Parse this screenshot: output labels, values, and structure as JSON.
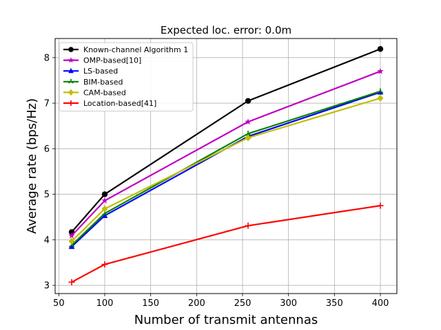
{
  "chart_data": {
    "type": "line",
    "title": "Expected loc. error: 0.0m",
    "xlabel": "Number of transmit antennas",
    "ylabel": "Average rate (bps/Hz)",
    "xlim": [
      46,
      418
    ],
    "ylim": [
      2.82,
      8.42
    ],
    "xticks": [
      50,
      100,
      150,
      200,
      250,
      300,
      350,
      400
    ],
    "yticks": [
      3,
      4,
      5,
      6,
      7,
      8
    ],
    "grid": true,
    "legend_position": "top-left",
    "series": [
      {
        "name": "Known-channel Algorithm 1",
        "color": "#000000",
        "marker": "circle",
        "x": [
          64,
          100,
          256,
          400
        ],
        "y": [
          4.17,
          5.0,
          7.05,
          8.19
        ]
      },
      {
        "name": "OMP-based[10]",
        "color": "#bf00bf",
        "marker": "star",
        "x": [
          64,
          100,
          256,
          400
        ],
        "y": [
          4.09,
          4.86,
          6.59,
          7.7
        ]
      },
      {
        "name": "LS-based",
        "color": "#0000ff",
        "marker": "triangle",
        "x": [
          64,
          100,
          256,
          400
        ],
        "y": [
          3.85,
          4.53,
          6.27,
          7.24
        ]
      },
      {
        "name": "BIM-based",
        "color": "#008000",
        "marker": "tri",
        "x": [
          64,
          100,
          256,
          400
        ],
        "y": [
          3.88,
          4.58,
          6.33,
          7.26
        ]
      },
      {
        "name": "CAM-based",
        "color": "#bfbf00",
        "marker": "diamond",
        "x": [
          64,
          100,
          256,
          400
        ],
        "y": [
          3.97,
          4.68,
          6.24,
          7.11
        ]
      },
      {
        "name": "Location-based[41]",
        "color": "#ff0000",
        "marker": "plus",
        "x": [
          64,
          100,
          256,
          400
        ],
        "y": [
          3.07,
          3.46,
          4.31,
          4.75
        ]
      }
    ]
  }
}
